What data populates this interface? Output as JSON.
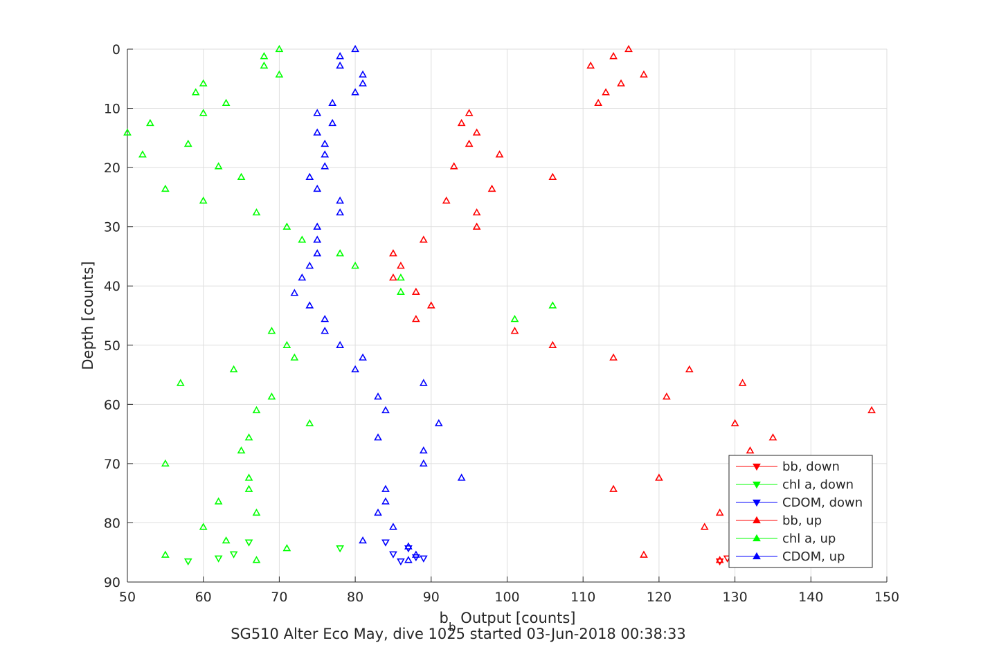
{
  "chart_data": {
    "type": "scatter",
    "title": "SG510 Alter Eco May, dive 1025 started 03-Jun-2018 00:38:33",
    "xlabel_main": "b",
    "xlabel_sub": "b",
    "xlabel_rest": " Output [counts]",
    "ylabel": "Depth [counts]",
    "xlim": [
      50,
      150
    ],
    "ylim": [
      0,
      90
    ],
    "y_reversed": true,
    "grid": true,
    "legend_position": "bottom-right",
    "x_ticks": [
      50,
      60,
      70,
      80,
      90,
      100,
      110,
      120,
      130,
      140,
      150
    ],
    "y_ticks": [
      0,
      10,
      20,
      30,
      40,
      50,
      60,
      70,
      80,
      90
    ],
    "x_tick_labels": [
      "50",
      "60",
      "70",
      "80",
      "90",
      "100",
      "110",
      "120",
      "130",
      "140",
      "150"
    ],
    "y_tick_labels": [
      "0",
      "10",
      "20",
      "30",
      "40",
      "50",
      "60",
      "70",
      "80",
      "90"
    ],
    "series": [
      {
        "name": "bb, down",
        "color": "#ff0000",
        "marker": "triangle-down",
        "points": [
          [
            129,
            86
          ],
          [
            128,
            86.5
          ]
        ]
      },
      {
        "name": "chl a, down",
        "color": "#00ff00",
        "marker": "triangle-down",
        "points": [
          [
            58,
            86.5
          ],
          [
            62,
            86
          ],
          [
            64,
            85.3
          ],
          [
            66,
            83.3
          ],
          [
            78,
            84.3
          ]
        ]
      },
      {
        "name": "CDOM, down",
        "color": "#0000ff",
        "marker": "triangle-down",
        "points": [
          [
            84,
            83.3
          ],
          [
            85,
            85.3
          ],
          [
            86,
            86.5
          ],
          [
            87,
            84.3
          ],
          [
            88,
            85.8
          ],
          [
            89,
            86
          ]
        ]
      },
      {
        "name": "bb, up",
        "color": "#ff0000",
        "marker": "triangle-up",
        "points": [
          [
            116,
            0
          ],
          [
            114,
            1.2
          ],
          [
            111,
            2.8
          ],
          [
            118,
            4.3
          ],
          [
            115,
            5.8
          ],
          [
            113,
            7.3
          ],
          [
            112,
            9.1
          ],
          [
            95,
            10.8
          ],
          [
            94,
            12.5
          ],
          [
            96,
            14.1
          ],
          [
            95,
            16
          ],
          [
            99,
            17.8
          ],
          [
            93,
            19.8
          ],
          [
            106,
            21.6
          ],
          [
            98,
            23.6
          ],
          [
            92,
            25.6
          ],
          [
            96,
            27.6
          ],
          [
            96,
            30
          ],
          [
            89,
            32.2
          ],
          [
            85,
            34.5
          ],
          [
            86,
            36.6
          ],
          [
            85,
            38.6
          ],
          [
            88,
            41
          ],
          [
            90,
            43.3
          ],
          [
            88,
            45.6
          ],
          [
            101,
            47.6
          ],
          [
            106,
            50
          ],
          [
            114,
            52.1
          ],
          [
            124,
            54.1
          ],
          [
            131,
            56.4
          ],
          [
            121,
            58.7
          ],
          [
            148,
            61
          ],
          [
            130,
            63.2
          ],
          [
            135,
            65.6
          ],
          [
            132,
            67.8
          ],
          [
            120,
            72.4
          ],
          [
            114,
            74.3
          ],
          [
            128,
            78.3
          ],
          [
            126,
            80.7
          ],
          [
            118,
            85.4
          ],
          [
            128,
            86.3
          ]
        ]
      },
      {
        "name": "chl a, up",
        "color": "#00ff00",
        "marker": "triangle-up",
        "points": [
          [
            70,
            0
          ],
          [
            68,
            1.2
          ],
          [
            68,
            2.8
          ],
          [
            70,
            4.3
          ],
          [
            60,
            5.8
          ],
          [
            59,
            7.3
          ],
          [
            63,
            9.1
          ],
          [
            60,
            10.8
          ],
          [
            53,
            12.5
          ],
          [
            50,
            14.1
          ],
          [
            58,
            16
          ],
          [
            52,
            17.8
          ],
          [
            62,
            19.8
          ],
          [
            65,
            21.6
          ],
          [
            55,
            23.6
          ],
          [
            60,
            25.6
          ],
          [
            67,
            27.6
          ],
          [
            71,
            30
          ],
          [
            73,
            32.2
          ],
          [
            78,
            34.5
          ],
          [
            80,
            36.6
          ],
          [
            86,
            38.6
          ],
          [
            86,
            41
          ],
          [
            106,
            43.3
          ],
          [
            101,
            45.6
          ],
          [
            69,
            47.6
          ],
          [
            71,
            50
          ],
          [
            72,
            52.1
          ],
          [
            64,
            54.1
          ],
          [
            57,
            56.4
          ],
          [
            69,
            58.7
          ],
          [
            67,
            61
          ],
          [
            74,
            63.2
          ],
          [
            66,
            65.6
          ],
          [
            65,
            67.8
          ],
          [
            55,
            70
          ],
          [
            66,
            72.4
          ],
          [
            66,
            74.3
          ],
          [
            62,
            76.4
          ],
          [
            67,
            78.3
          ],
          [
            60,
            80.7
          ],
          [
            63,
            83
          ],
          [
            71,
            84.3
          ],
          [
            55,
            85.4
          ],
          [
            67,
            86.3
          ]
        ]
      },
      {
        "name": "CDOM, up",
        "color": "#0000ff",
        "marker": "triangle-up",
        "points": [
          [
            80,
            0
          ],
          [
            78,
            1.2
          ],
          [
            78,
            2.8
          ],
          [
            81,
            4.3
          ],
          [
            81,
            5.8
          ],
          [
            80,
            7.3
          ],
          [
            77,
            9.1
          ],
          [
            75,
            10.8
          ],
          [
            77,
            12.5
          ],
          [
            75,
            14.1
          ],
          [
            76,
            16
          ],
          [
            76,
            17.8
          ],
          [
            76,
            19.8
          ],
          [
            74,
            21.6
          ],
          [
            75,
            23.6
          ],
          [
            78,
            25.6
          ],
          [
            78,
            27.6
          ],
          [
            75,
            30
          ],
          [
            75,
            32.2
          ],
          [
            75,
            34.5
          ],
          [
            74,
            36.6
          ],
          [
            73,
            38.6
          ],
          [
            72,
            41.2
          ],
          [
            74,
            43.3
          ],
          [
            76,
            45.6
          ],
          [
            76,
            47.6
          ],
          [
            78,
            50
          ],
          [
            81,
            52.1
          ],
          [
            80,
            54.1
          ],
          [
            89,
            56.4
          ],
          [
            83,
            58.7
          ],
          [
            84,
            61
          ],
          [
            91,
            63.2
          ],
          [
            83,
            65.6
          ],
          [
            89,
            67.8
          ],
          [
            89,
            70
          ],
          [
            94,
            72.4
          ],
          [
            84,
            74.3
          ],
          [
            84,
            76.4
          ],
          [
            83,
            78.3
          ],
          [
            85,
            80.7
          ],
          [
            81,
            83
          ],
          [
            87,
            84
          ],
          [
            88,
            85.4
          ],
          [
            87,
            86.3
          ]
        ]
      }
    ],
    "legend_order": [
      0,
      1,
      2,
      3,
      4,
      5
    ]
  }
}
